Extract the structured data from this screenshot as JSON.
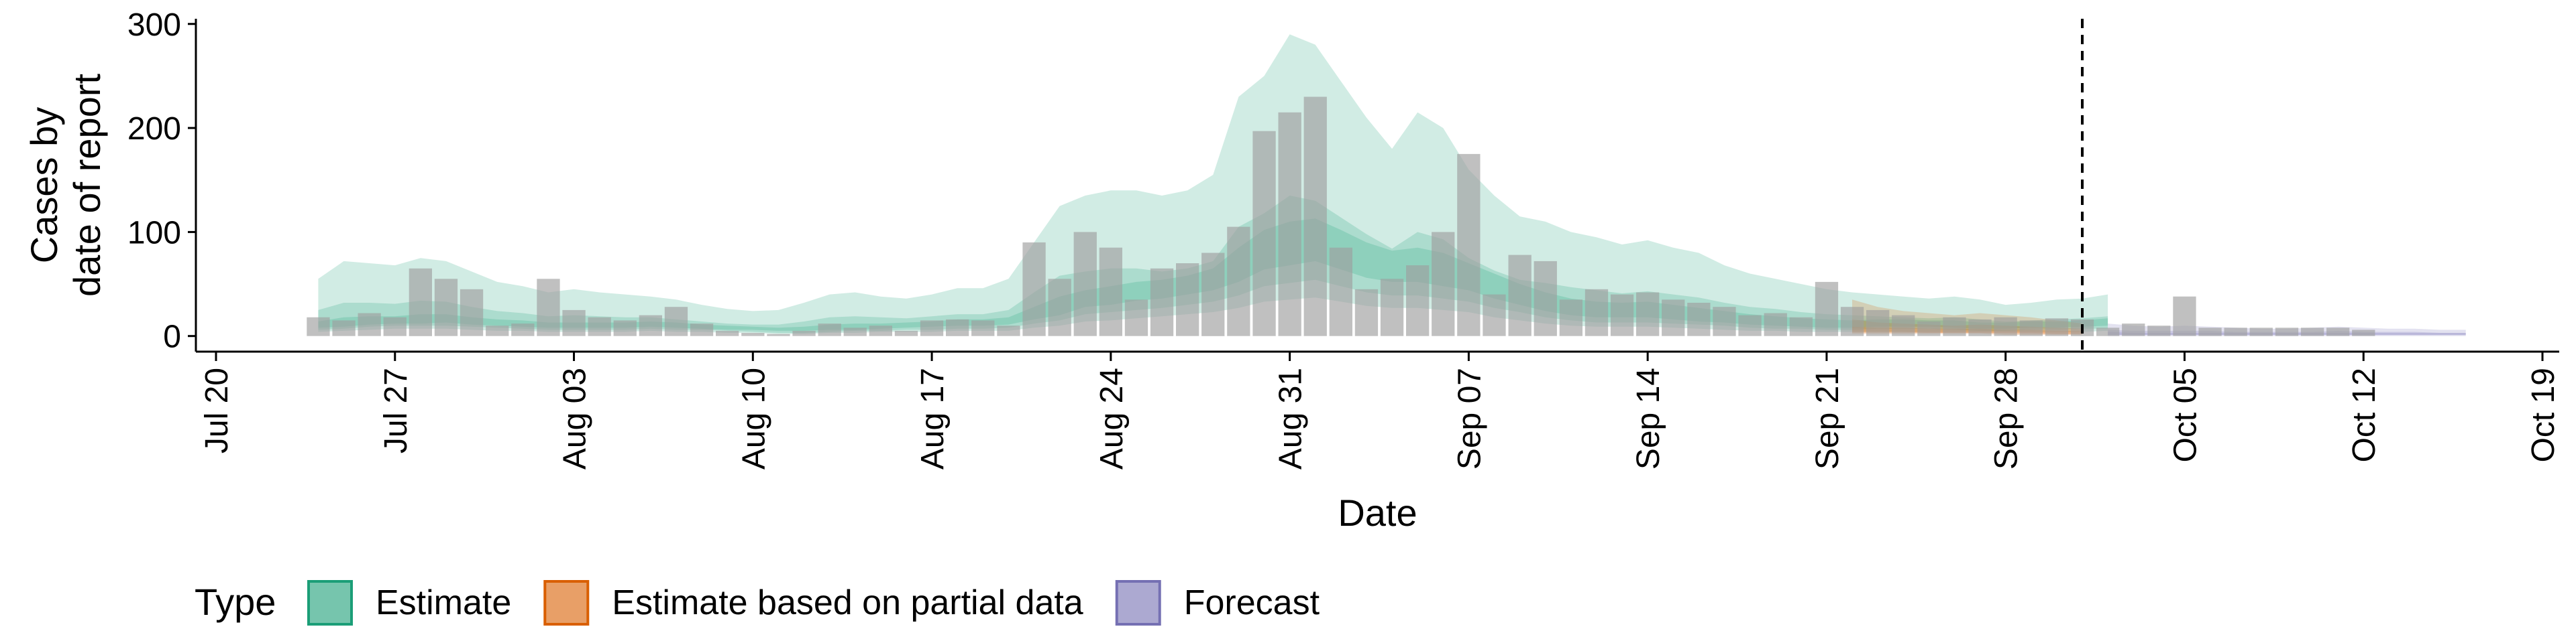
{
  "chart_data": {
    "type": "bar",
    "xlabel": "Date",
    "ylabel": [
      "Cases by",
      "date of report"
    ],
    "x_ticks": [
      "Jul 20",
      "Jul 27",
      "Aug 03",
      "Aug 10",
      "Aug 17",
      "Aug 24",
      "Aug 31",
      "Sep 07",
      "Sep 14",
      "Sep 21",
      "Sep 28",
      "Oct 05",
      "Oct 12",
      "Oct 19"
    ],
    "x_range": [
      "2020-07-20",
      "2020-10-19"
    ],
    "y_ticks": [
      0,
      100,
      200,
      300
    ],
    "ylim": [
      -15,
      305
    ],
    "grid": false,
    "cutoff_date": "2020-10-01",
    "bars_start_date": "2020-07-24",
    "reported_cases": [
      18,
      15,
      22,
      18,
      65,
      55,
      45,
      10,
      12,
      55,
      25,
      18,
      15,
      20,
      28,
      12,
      5,
      3,
      2,
      5,
      12,
      8,
      10,
      5,
      15,
      16,
      15,
      10,
      90,
      55,
      100,
      85,
      35,
      65,
      70,
      80,
      105,
      197,
      215,
      230,
      85,
      45,
      55,
      68,
      100,
      175,
      40,
      78,
      72,
      35,
      45,
      40,
      42,
      35,
      32,
      28,
      20,
      22,
      18,
      52,
      28,
      25,
      20,
      14,
      18,
      16,
      18,
      15,
      17,
      16,
      8,
      12,
      10,
      38,
      8,
      8,
      8,
      8,
      8,
      8,
      6
    ],
    "legend": {
      "title": "Type",
      "position": "bottom",
      "items": [
        {
          "label": "Estimate",
          "color": "#1b9e77"
        },
        {
          "label": "Estimate based on partial data",
          "color": "#d95f02"
        },
        {
          "label": "Forecast",
          "color": "#7570b3"
        }
      ]
    },
    "series": [
      {
        "type": "Estimate",
        "start_date": "2020-07-24",
        "median": [
          10,
          12,
          14,
          15,
          15,
          16,
          14,
          12,
          11,
          10,
          10,
          10,
          10,
          11,
          10,
          9,
          8,
          7,
          6,
          6,
          7,
          8,
          9,
          10,
          11,
          12,
          12,
          14,
          20,
          25,
          35,
          38,
          42,
          45,
          50,
          55,
          65,
          80,
          85,
          90,
          80,
          70,
          65,
          65,
          60,
          55,
          45,
          38,
          30,
          25,
          22,
          22,
          22,
          20,
          18,
          16,
          14,
          12,
          11,
          10,
          10,
          11,
          11,
          11,
          10,
          9,
          9,
          10,
          10,
          11,
          12
        ],
        "bands": [
          {
            "lower": [
              4,
              5,
              6,
              7,
              7,
              7,
              6,
              5,
              5,
              4,
              4,
              4,
              4,
              5,
              4,
              4,
              3,
              3,
              2,
              2,
              3,
              3,
              4,
              4,
              4,
              5,
              5,
              5,
              8,
              10,
              14,
              15,
              17,
              19,
              21,
              23,
              27,
              33,
              35,
              37,
              33,
              29,
              27,
              27,
              25,
              23,
              18,
              15,
              12,
              10,
              9,
              9,
              9,
              8,
              7,
              6,
              5,
              5,
              4,
              4,
              4,
              4,
              4,
              4,
              4,
              4,
              4,
              4,
              4,
              4,
              5
            ],
            "upper": [
              55,
              72,
              70,
              68,
              75,
              72,
              62,
              52,
              48,
              42,
              45,
              42,
              40,
              38,
              35,
              30,
              26,
              24,
              25,
              32,
              40,
              42,
              38,
              36,
              40,
              46,
              46,
              55,
              90,
              125,
              135,
              140,
              140,
              135,
              140,
              155,
              230,
              250,
              290,
              280,
              245,
              210,
              180,
              215,
              200,
              160,
              135,
              115,
              110,
              100,
              95,
              88,
              92,
              85,
              80,
              68,
              60,
              55,
              50,
              45,
              42,
              40,
              38,
              36,
              38,
              35,
              30,
              32,
              35,
              36,
              40
            ]
          },
          {
            "lower": [
              6,
              7,
              9,
              10,
              10,
              10,
              9,
              8,
              7,
              6,
              6,
              6,
              6,
              7,
              6,
              6,
              5,
              4,
              3,
              3,
              4,
              5,
              5,
              6,
              6,
              7,
              7,
              8,
              12,
              15,
              21,
              23,
              25,
              27,
              30,
              33,
              39,
              48,
              51,
              54,
              48,
              42,
              39,
              39,
              36,
              33,
              27,
              23,
              18,
              15,
              13,
              13,
              13,
              12,
              11,
              10,
              8,
              7,
              7,
              6,
              6,
              7,
              7,
              7,
              6,
              5,
              5,
              6,
              6,
              7,
              7
            ],
            "upper": [
              25,
              32,
              32,
              31,
              34,
              33,
              28,
              24,
              22,
              19,
              20,
              19,
              18,
              18,
              16,
              14,
              12,
              11,
              11,
              14,
              18,
              19,
              18,
              17,
              19,
              21,
              21,
              25,
              42,
              58,
              62,
              65,
              65,
              62,
              65,
              72,
              105,
              118,
              135,
              130,
              114,
              98,
              84,
              100,
              93,
              75,
              63,
              54,
              51,
              47,
              44,
              41,
              43,
              40,
              37,
              32,
              28,
              26,
              23,
              21,
              20,
              19,
              18,
              17,
              18,
              16,
              14,
              15,
              16,
              17,
              19
            ]
          },
          {
            "lower": [
              8,
              9,
              11,
              12,
              12,
              13,
              11,
              10,
              9,
              8,
              8,
              8,
              8,
              9,
              8,
              7,
              6,
              6,
              5,
              5,
              6,
              6,
              7,
              8,
              9,
              10,
              10,
              11,
              16,
              20,
              28,
              30,
              34,
              36,
              40,
              44,
              52,
              64,
              68,
              72,
              64,
              56,
              52,
              52,
              48,
              44,
              36,
              30,
              24,
              20,
              18,
              18,
              18,
              16,
              14,
              13,
              11,
              10,
              9,
              8,
              8,
              9,
              9,
              9,
              8,
              7,
              7,
              8,
              8,
              9,
              10
            ],
            "upper": [
              14,
              18,
              19,
              19,
              21,
              21,
              18,
              16,
              15,
              13,
              13,
              13,
              13,
              14,
              13,
              11,
              10,
              9,
              8,
              9,
              11,
              12,
              12,
              13,
              14,
              16,
              16,
              18,
              28,
              38,
              44,
              48,
              52,
              54,
              58,
              65,
              85,
              102,
              110,
              113,
              102,
              90,
              82,
              85,
              80,
              70,
              60,
              50,
              42,
              36,
              33,
              32,
              33,
              30,
              27,
              24,
              21,
              19,
              17,
              16,
              15,
              16,
              16,
              15,
              15,
              13,
              13,
              14,
              14,
              15,
              17
            ]
          }
        ]
      },
      {
        "type": "Estimate based on partial data",
        "start_date": "2020-09-22",
        "median": [
          5,
          5,
          5,
          4,
          4,
          4,
          4,
          4,
          3,
          3
        ],
        "bands": [
          {
            "lower": [
              2,
              2,
              2,
              2,
              2,
              2,
              1,
              1,
              1,
              1
            ],
            "upper": [
              35,
              28,
              24,
              22,
              20,
              22,
              20,
              18,
              15,
              12
            ]
          },
          {
            "lower": [
              3,
              3,
              3,
              3,
              3,
              3,
              2,
              2,
              2,
              2
            ],
            "upper": [
              16,
              13,
              12,
              11,
              10,
              11,
              10,
              9,
              8,
              7
            ]
          },
          {
            "lower": [
              4,
              4,
              4,
              3,
              3,
              3,
              3,
              3,
              2,
              2
            ],
            "upper": [
              9,
              8,
              8,
              7,
              7,
              7,
              6,
              6,
              5,
              5
            ]
          }
        ]
      },
      {
        "type": "Forecast",
        "start_date": "2020-10-02",
        "median": [
          2,
          2,
          2,
          2,
          2,
          2,
          2,
          2,
          2,
          2,
          2,
          2,
          2,
          2,
          2
        ],
        "bands": [
          {
            "lower": [
              0,
              0,
              0,
              0,
              0,
              0,
              0,
              0,
              0,
              0,
              0,
              0,
              0,
              0,
              0
            ],
            "upper": [
              12,
              10,
              9,
              10,
              9,
              8,
              7,
              7,
              8,
              9,
              8,
              7,
              7,
              6,
              6
            ]
          },
          {
            "lower": [
              1,
              1,
              1,
              1,
              1,
              1,
              1,
              1,
              1,
              1,
              1,
              1,
              1,
              1,
              1
            ],
            "upper": [
              6,
              5,
              5,
              5,
              5,
              4,
              4,
              4,
              4,
              5,
              4,
              4,
              4,
              3,
              3
            ]
          },
          {
            "lower": [
              1,
              1,
              1,
              1,
              1,
              1,
              1,
              1,
              1,
              1,
              1,
              1,
              1,
              1,
              1
            ],
            "upper": [
              4,
              3,
              3,
              3,
              3,
              3,
              3,
              3,
              3,
              3,
              3,
              3,
              3,
              3,
              3
            ]
          }
        ]
      }
    ]
  }
}
